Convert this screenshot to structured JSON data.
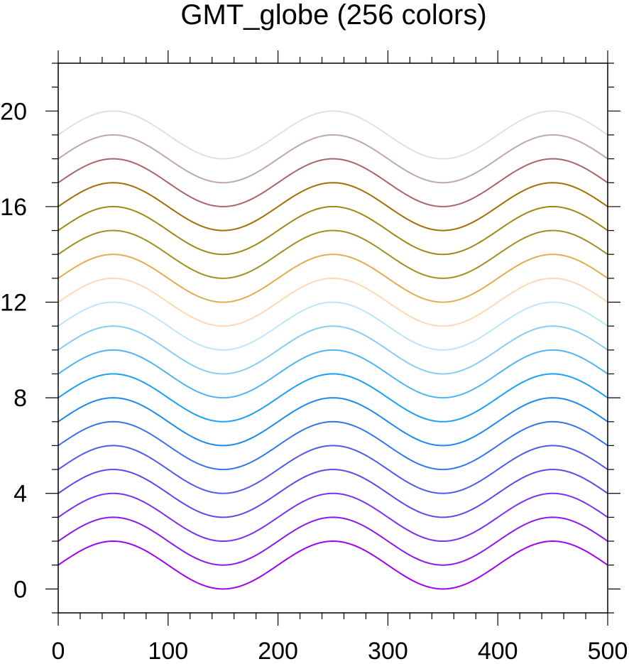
{
  "chart_data": {
    "type": "line",
    "title": "GMT_globe (256 colors)",
    "xlabel": "",
    "ylabel": "",
    "xlim": [
      0,
      500
    ],
    "ylim": [
      -1,
      22
    ],
    "xticks": [
      0,
      100,
      200,
      300,
      400,
      500
    ],
    "xtick_labels": [
      "0",
      "100",
      "200",
      "300",
      "400",
      "500"
    ],
    "yticks": [
      0,
      4,
      8,
      12,
      16,
      20
    ],
    "ytick_labels": [
      "0",
      "4",
      "8",
      "12",
      "16",
      "20"
    ],
    "x_minor_step": 20,
    "y_minor_step": 1,
    "grid": false,
    "curve_formula": "y = offset + sin(2*pi*(x)/200)",
    "x_range": [
      0,
      500
    ],
    "series": [
      {
        "offset": 1,
        "color": "#a000f0"
      },
      {
        "offset": 2,
        "color": "#8c18f0"
      },
      {
        "offset": 3,
        "color": "#7c30f0"
      },
      {
        "offset": 4,
        "color": "#6444f0"
      },
      {
        "offset": 5,
        "color": "#5058f0"
      },
      {
        "offset": 6,
        "color": "#3474f0"
      },
      {
        "offset": 7,
        "color": "#1c88f0"
      },
      {
        "offset": 8,
        "color": "#1ca0f4"
      },
      {
        "offset": 9,
        "color": "#50b4f4"
      },
      {
        "offset": 10,
        "color": "#88ccf4"
      },
      {
        "offset": 11,
        "color": "#bce6fa"
      },
      {
        "offset": 12,
        "color": "#ffd8b4"
      },
      {
        "offset": 13,
        "color": "#e0ae50"
      },
      {
        "offset": 14,
        "color": "#a09020"
      },
      {
        "offset": 15,
        "color": "#a08814"
      },
      {
        "offset": 16,
        "color": "#a07000"
      },
      {
        "offset": 17,
        "color": "#aa6666"
      },
      {
        "offset": 18,
        "color": "#c0a8a8"
      },
      {
        "offset": 19,
        "color": "#e0e0e0"
      },
      {
        "offset": 20,
        "color": "#f4f4f4"
      }
    ]
  }
}
